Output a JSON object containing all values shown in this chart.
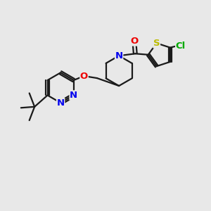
{
  "background_color": "#e8e8e8",
  "bond_color": "#1a1a1a",
  "bond_width": 1.6,
  "atom_colors": {
    "N": "#0000ee",
    "O": "#ee0000",
    "S": "#bbbb00",
    "Cl": "#00aa00",
    "C": "#1a1a1a"
  },
  "font_size_atom": 9.5
}
